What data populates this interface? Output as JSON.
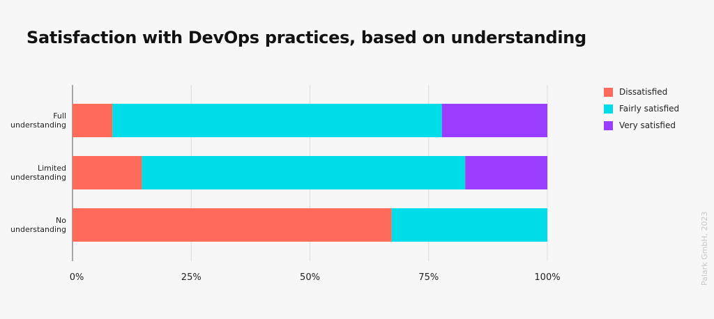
{
  "chart_data": {
    "type": "bar",
    "orientation": "horizontal",
    "stacked": true,
    "title": "Satisfaction with DevOps practices, based on understanding",
    "categories": [
      "Full understanding",
      "Limited understanding",
      "No understanding"
    ],
    "series": [
      {
        "name": "Dissatisfied",
        "color": "#ff6b5a",
        "values": [
          8.4,
          14.6,
          67.2
        ]
      },
      {
        "name": "Fairly satisfied",
        "color": "#00dde8",
        "values": [
          69.4,
          68.1,
          32.8
        ]
      },
      {
        "name": "Very satisfied",
        "color": "#9a3dff",
        "values": [
          22.2,
          17.3,
          0
        ]
      }
    ],
    "xlim": [
      0,
      100
    ],
    "xticks": [
      "0%",
      "25%",
      "50%",
      "75%",
      "100%"
    ],
    "grid": true,
    "legend": "right"
  },
  "credit": "Palark GmbH, 2023"
}
